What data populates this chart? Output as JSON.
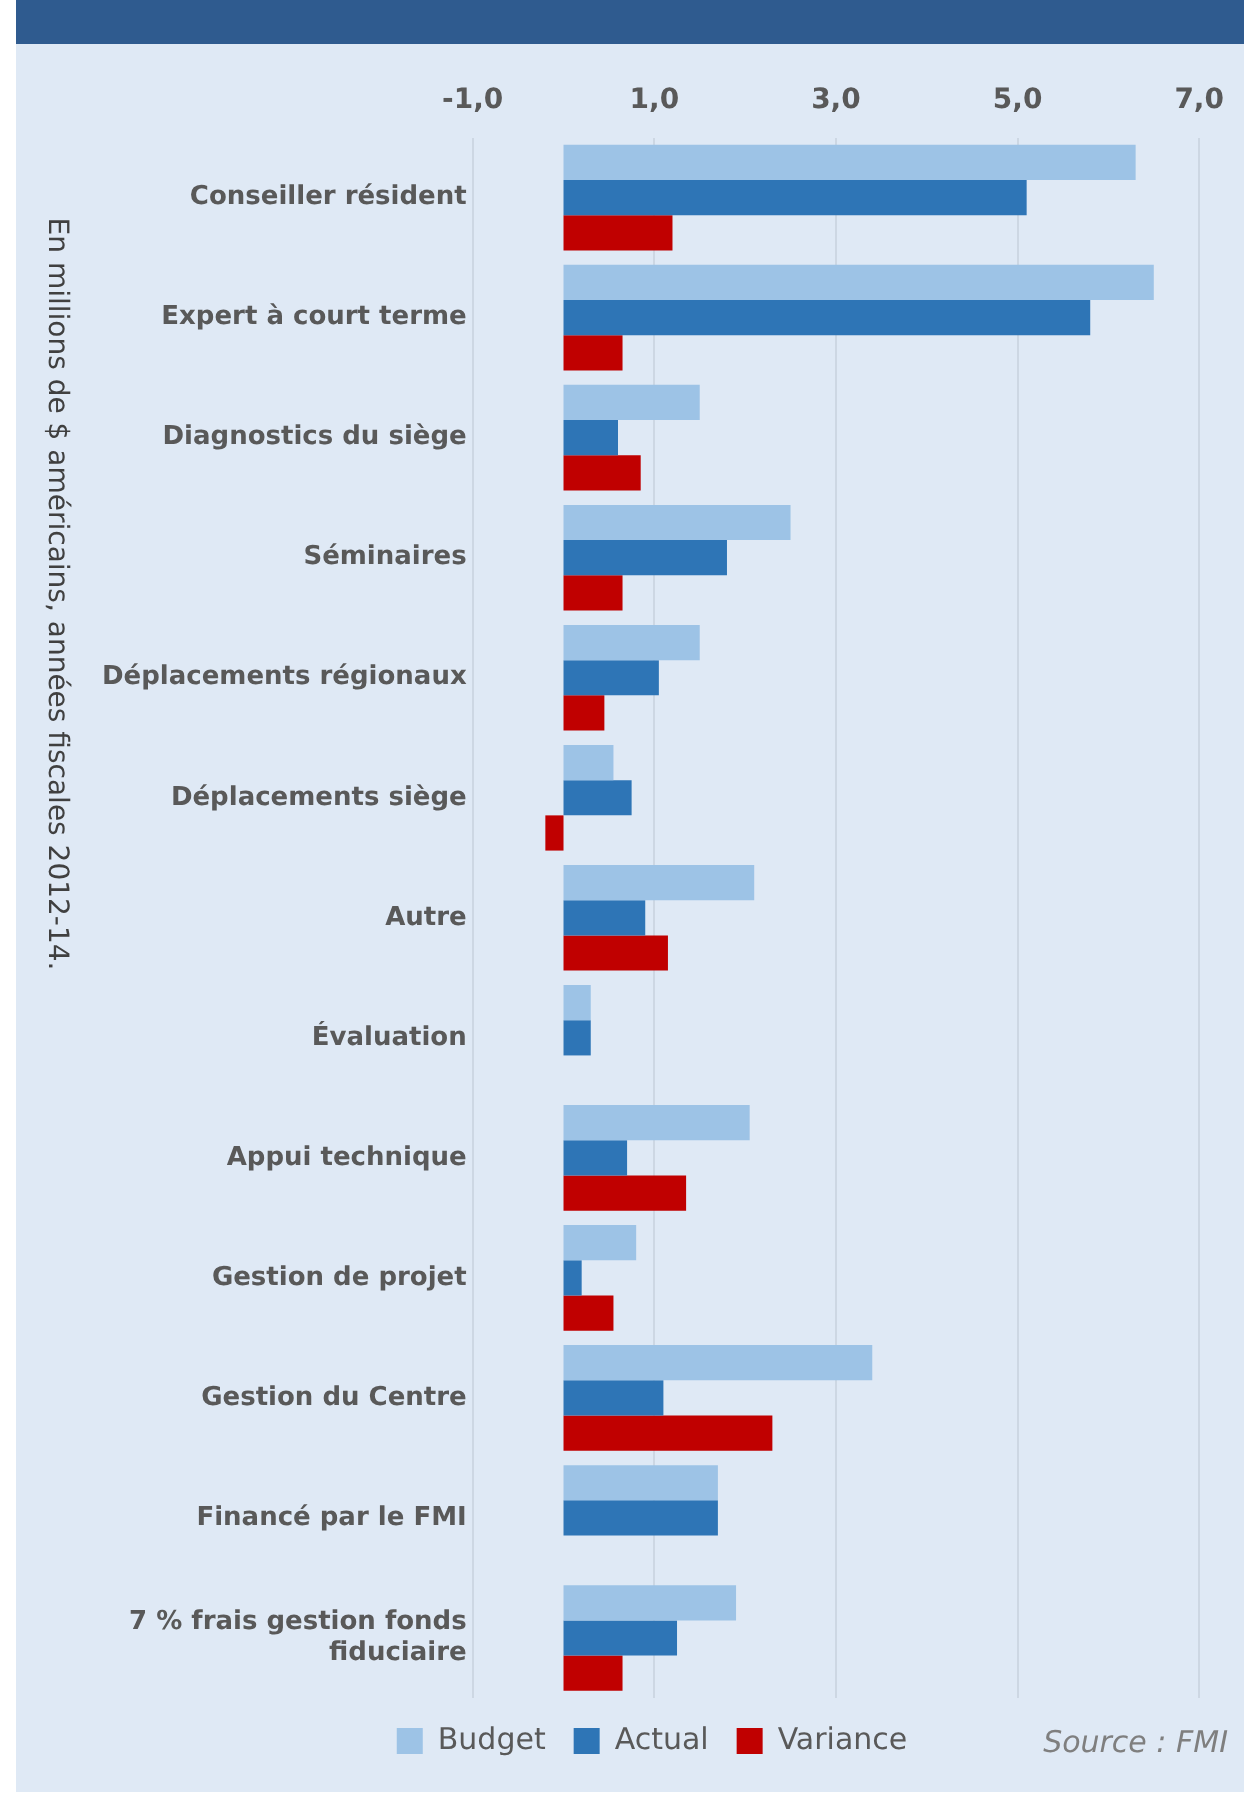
{
  "chart_data": {
    "type": "bar",
    "orientation": "horizontal",
    "categories": [
      "Conseiller résident",
      "Expert à court terme",
      "Diagnostics du siège",
      "Séminaires",
      "Déplacements régionaux",
      "Déplacements siège",
      "Autre",
      "Évaluation",
      "Appui technique",
      "Gestion de projet",
      "Gestion du Centre",
      "Financé par le FMI",
      "7 % frais gestion fonds fiduciaire"
    ],
    "series": [
      {
        "name": "Budget",
        "color": "#9dc3e6",
        "values": [
          6.3,
          6.5,
          1.5,
          2.5,
          1.5,
          0.55,
          2.1,
          0.3,
          2.05,
          0.8,
          3.4,
          1.7,
          1.9
        ]
      },
      {
        "name": "Actual",
        "color": "#2e75b6",
        "values": [
          5.1,
          5.8,
          0.6,
          1.8,
          1.05,
          0.75,
          0.9,
          0.3,
          0.7,
          0.2,
          1.1,
          1.7,
          1.25
        ]
      },
      {
        "name": "Variance",
        "color": "#c00000",
        "values": [
          1.2,
          0.65,
          0.85,
          0.65,
          0.45,
          -0.2,
          1.15,
          null,
          1.35,
          0.55,
          2.3,
          null,
          0.65
        ]
      }
    ],
    "xlim": [
      -1,
      7
    ],
    "xticks": [
      {
        "value": -1,
        "label": "-1,0"
      },
      {
        "value": 1,
        "label": "1,0"
      },
      {
        "value": 3,
        "label": "3,0"
      },
      {
        "value": 5,
        "label": "5,0"
      },
      {
        "value": 7,
        "label": "7,0"
      }
    ],
    "ylabel": "En millions de $ américains, années fiscales 2012-14.",
    "annotations": [
      "Source : FMI"
    ],
    "grid": "x",
    "legend": "bottom"
  }
}
